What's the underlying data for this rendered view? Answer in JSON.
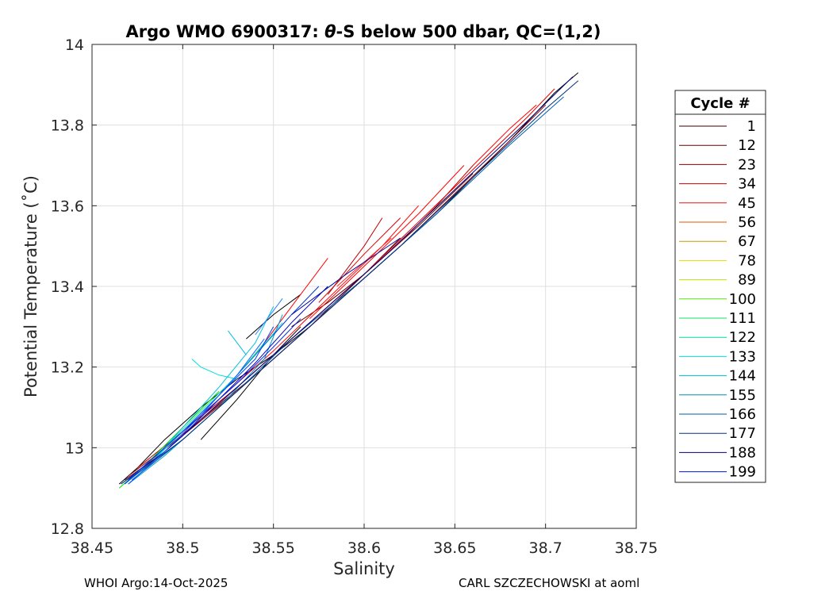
{
  "chart_data": {
    "type": "line",
    "title": "Argo WMO 6900317: θ-S below 500 dbar,  QC=(1,2)",
    "title_parts": {
      "prefix": "Argo WMO 6900317: ",
      "symbol": "θ",
      "suffix": "-S below 500 dbar,  QC=(1,2)"
    },
    "xlabel": "Salinity",
    "ylabel": "Potential Temperature (˚C)",
    "xlim": [
      38.45,
      38.75
    ],
    "ylim": [
      12.8,
      14
    ],
    "x_ticks": [
      "38.45",
      "38.5",
      "38.55",
      "38.6",
      "38.65",
      "38.7",
      "38.75"
    ],
    "y_ticks": [
      "12.8",
      "13",
      "13.2",
      "13.4",
      "13.6",
      "13.8",
      "14"
    ],
    "grid": true,
    "legend": {
      "title": "Cycle #",
      "placement": "right",
      "entries": [
        {
          "label": "1",
          "color": "#3a0000"
        },
        {
          "label": "12",
          "color": "#600000"
        },
        {
          "label": "23",
          "color": "#8a0000"
        },
        {
          "label": "34",
          "color": "#c00000"
        },
        {
          "label": "45",
          "color": "#ee1010"
        },
        {
          "label": "56",
          "color": "#e05a00"
        },
        {
          "label": "67",
          "color": "#d09a00"
        },
        {
          "label": "78",
          "color": "#e6d800"
        },
        {
          "label": "89",
          "color": "#b8e400"
        },
        {
          "label": "100",
          "color": "#50e600"
        },
        {
          "label": "111",
          "color": "#10e060"
        },
        {
          "label": "122",
          "color": "#00d8a0"
        },
        {
          "label": "133",
          "color": "#00e0d8"
        },
        {
          "label": "144",
          "color": "#00b8d8"
        },
        {
          "label": "155",
          "color": "#0090b0"
        },
        {
          "label": "166",
          "color": "#0060a0"
        },
        {
          "label": "177",
          "color": "#003080"
        },
        {
          "label": "188",
          "color": "#000080"
        },
        {
          "label": "199",
          "color": "#0018d0"
        }
      ]
    },
    "series": [
      {
        "color": "#000000",
        "x": [
          38.465,
          38.475,
          38.49,
          38.51,
          38.53,
          38.55,
          38.57,
          38.6,
          38.64,
          38.68,
          38.705,
          38.718
        ],
        "y": [
          12.91,
          12.95,
          13.02,
          13.1,
          13.17,
          13.23,
          13.3,
          13.42,
          13.58,
          13.76,
          13.88,
          13.93
        ]
      },
      {
        "color": "#000000",
        "x": [
          38.51,
          38.53,
          38.55,
          38.565
        ],
        "y": [
          13.02,
          13.12,
          13.23,
          13.3
        ]
      },
      {
        "color": "#000000",
        "x": [
          38.535,
          38.55,
          38.565
        ],
        "y": [
          13.27,
          13.33,
          13.38
        ]
      },
      {
        "color": "#600000",
        "x": [
          38.468,
          38.49,
          38.51,
          38.54,
          38.57,
          38.6,
          38.63,
          38.66
        ],
        "y": [
          12.92,
          12.99,
          13.07,
          13.18,
          13.3,
          13.43,
          13.55,
          13.68
        ]
      },
      {
        "color": "#600000",
        "x": [
          38.56,
          38.58,
          38.6,
          38.62
        ],
        "y": [
          13.3,
          13.36,
          13.43,
          13.52
        ]
      },
      {
        "color": "#8a0000",
        "x": [
          38.47,
          38.5,
          38.53,
          38.56,
          38.59,
          38.62,
          38.65,
          38.68,
          38.7
        ],
        "y": [
          12.93,
          13.03,
          13.14,
          13.26,
          13.38,
          13.5,
          13.63,
          13.76,
          13.85
        ]
      },
      {
        "color": "#c00000",
        "x": [
          38.475,
          38.5,
          38.53,
          38.56,
          38.59,
          38.62,
          38.64,
          38.66
        ],
        "y": [
          12.95,
          13.04,
          13.15,
          13.27,
          13.39,
          13.51,
          13.6,
          13.7
        ]
      },
      {
        "color": "#e00000",
        "x": [
          38.48,
          38.51,
          38.54,
          38.57,
          38.6,
          38.63,
          38.66,
          38.69,
          38.705
        ],
        "y": [
          12.96,
          13.07,
          13.19,
          13.31,
          13.43,
          13.56,
          13.69,
          13.82,
          13.89
        ]
      },
      {
        "color": "#ff0000",
        "x": [
          38.49,
          38.52,
          38.55,
          38.58,
          38.61,
          38.63
        ],
        "y": [
          13.0,
          13.12,
          13.24,
          13.37,
          13.5,
          13.6
        ]
      },
      {
        "color": "#ff0000",
        "x": [
          38.57,
          38.6,
          38.63,
          38.655
        ],
        "y": [
          13.32,
          13.45,
          13.58,
          13.7
        ]
      },
      {
        "color": "#ff0000",
        "x": [
          38.54,
          38.56,
          38.58
        ],
        "y": [
          13.23,
          13.35,
          13.47
        ]
      },
      {
        "color": "#e00000",
        "x": [
          38.575,
          38.6,
          38.62
        ],
        "y": [
          13.36,
          13.48,
          13.57
        ]
      },
      {
        "color": "#c00000",
        "x": [
          38.58,
          38.6,
          38.61
        ],
        "y": [
          13.38,
          13.5,
          13.57
        ]
      },
      {
        "color": "#ff0000",
        "x": [
          38.66,
          38.68,
          38.695
        ],
        "y": [
          13.7,
          13.79,
          13.85
        ]
      },
      {
        "color": "#ff2020",
        "x": [
          38.585,
          38.6,
          38.615
        ],
        "y": [
          13.4,
          13.46,
          13.52
        ]
      },
      {
        "color": "#00e000",
        "x": [
          38.465,
          38.48,
          38.5,
          38.52
        ],
        "y": [
          12.9,
          12.96,
          13.05,
          13.14
        ]
      },
      {
        "color": "#20e0a0",
        "x": [
          38.47,
          38.49,
          38.51,
          38.53,
          38.545
        ],
        "y": [
          12.92,
          13.0,
          13.09,
          13.18,
          13.26
        ]
      },
      {
        "color": "#00e0e0",
        "x": [
          38.475,
          38.5,
          38.52,
          38.54,
          38.555
        ],
        "y": [
          12.93,
          13.04,
          13.13,
          13.23,
          13.31
        ]
      },
      {
        "color": "#00e0e0",
        "x": [
          38.505,
          38.51,
          38.52,
          38.53
        ],
        "y": [
          13.22,
          13.2,
          13.18,
          13.17
        ]
      },
      {
        "color": "#00c0e0",
        "x": [
          38.48,
          38.5,
          38.52,
          38.54,
          38.55
        ],
        "y": [
          12.95,
          13.05,
          13.15,
          13.26,
          13.35
        ]
      },
      {
        "color": "#00c0e0",
        "x": [
          38.525,
          38.53,
          38.535
        ],
        "y": [
          13.29,
          13.26,
          13.23
        ]
      },
      {
        "color": "#00a0d0",
        "x": [
          38.47,
          38.49,
          38.52,
          38.545,
          38.555
        ],
        "y": [
          12.91,
          12.98,
          13.1,
          13.22,
          13.33
        ]
      },
      {
        "color": "#0080c0",
        "x": [
          38.468,
          38.49,
          38.51,
          38.53,
          38.55
        ],
        "y": [
          12.91,
          12.99,
          13.08,
          13.18,
          13.28
        ]
      },
      {
        "color": "#0060b0",
        "x": [
          38.472,
          38.5,
          38.53,
          38.56,
          38.6,
          38.64,
          38.68,
          38.71
        ],
        "y": [
          12.92,
          13.02,
          13.14,
          13.27,
          13.42,
          13.58,
          13.75,
          13.87
        ]
      },
      {
        "color": "#003080",
        "x": [
          38.47,
          38.5,
          38.54,
          38.58,
          38.62,
          38.66,
          38.7,
          38.718
        ],
        "y": [
          12.92,
          13.02,
          13.18,
          13.34,
          13.5,
          13.67,
          13.84,
          13.91
        ]
      },
      {
        "color": "#000080",
        "x": [
          38.466,
          38.49,
          38.52,
          38.55,
          38.58,
          38.61,
          38.65,
          38.69,
          38.715
        ],
        "y": [
          12.91,
          12.99,
          13.11,
          13.23,
          13.35,
          13.47,
          13.64,
          13.81,
          13.92
        ]
      },
      {
        "color": "#0000c0",
        "x": [
          38.47,
          38.5,
          38.52,
          38.54,
          38.56,
          38.58
        ],
        "y": [
          12.91,
          13.03,
          13.12,
          13.21,
          13.31,
          13.4
        ]
      },
      {
        "color": "#0020e0",
        "x": [
          38.47,
          38.49,
          38.51,
          38.53,
          38.55,
          38.565
        ],
        "y": [
          12.92,
          13.0,
          13.08,
          13.16,
          13.25,
          13.32
        ]
      },
      {
        "color": "#0040ff",
        "x": [
          38.468,
          38.48,
          38.5,
          38.52,
          38.54,
          38.55
        ],
        "y": [
          12.91,
          12.96,
          13.04,
          13.13,
          13.22,
          13.3
        ]
      },
      {
        "color": "#1060ff",
        "x": [
          38.47,
          38.49,
          38.51,
          38.53,
          38.545
        ],
        "y": [
          12.91,
          12.99,
          13.08,
          13.18,
          13.27
        ]
      },
      {
        "color": "#0030d0",
        "x": [
          38.55,
          38.56,
          38.575
        ],
        "y": [
          13.28,
          13.33,
          13.4
        ]
      },
      {
        "color": "#0010a0",
        "x": [
          38.56,
          38.59,
          38.62
        ],
        "y": [
          13.33,
          13.43,
          13.52
        ]
      },
      {
        "color": "#2080ff",
        "x": [
          38.54,
          38.55,
          38.555
        ],
        "y": [
          13.28,
          13.34,
          13.37
        ]
      }
    ]
  },
  "footer": {
    "left": "WHOI Argo:14-Oct-2025",
    "right": "CARL SZCZECHOWSKI at aoml"
  }
}
